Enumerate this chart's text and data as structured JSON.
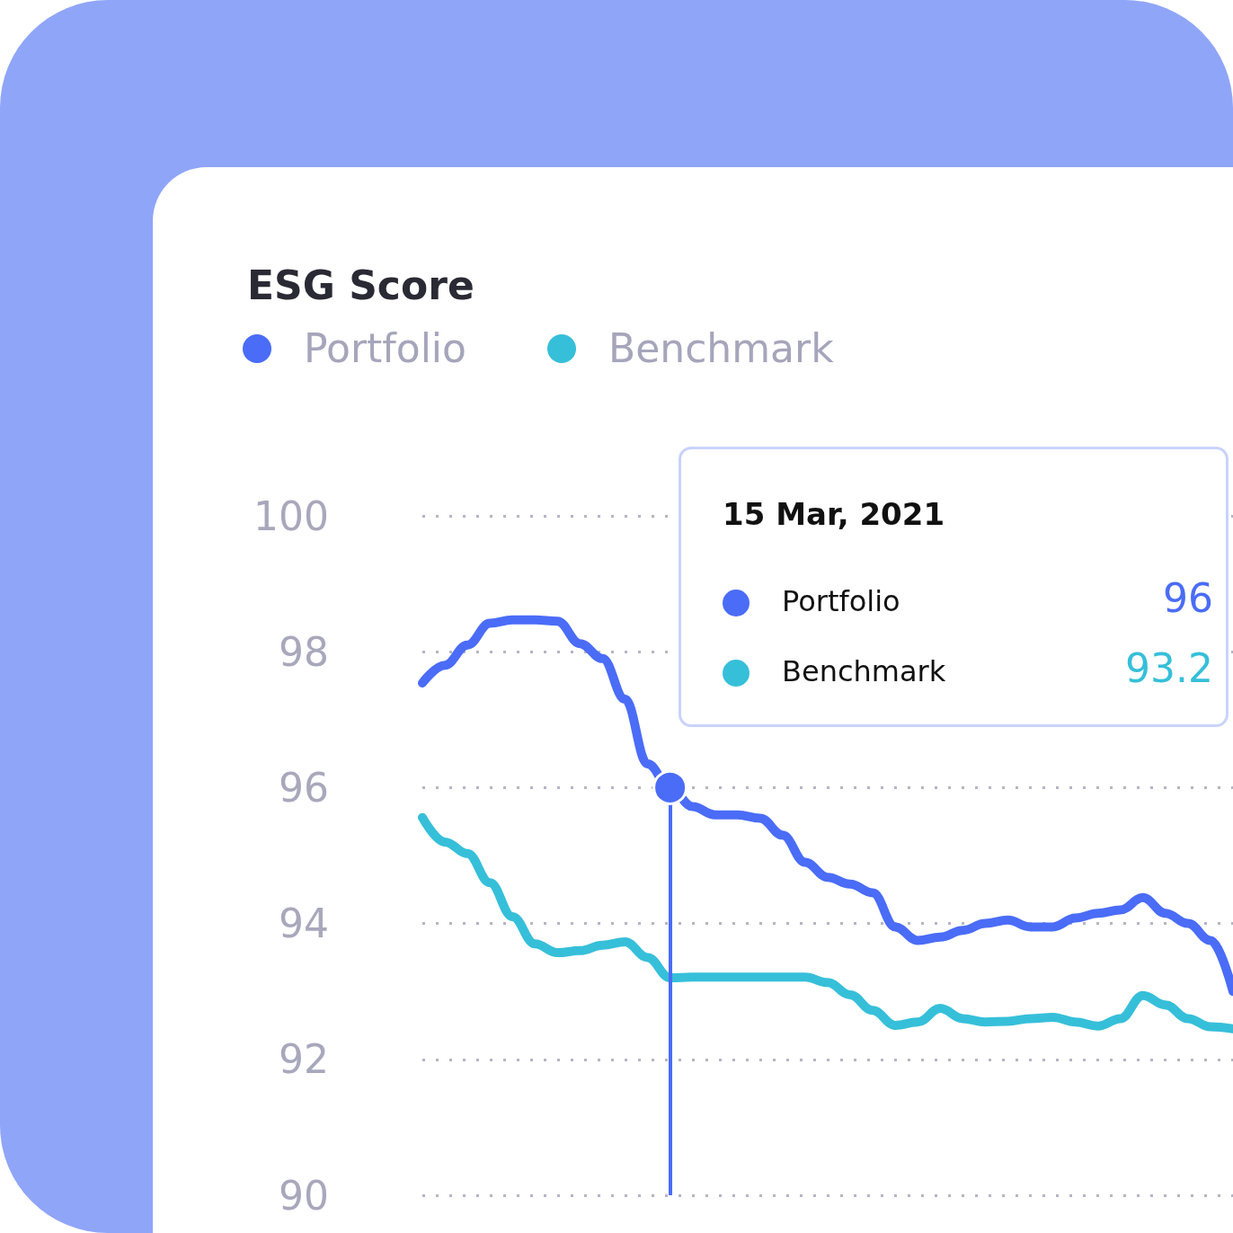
{
  "chart_data": {
    "type": "line",
    "title": "ESG Score",
    "categories": [
      null,
      null,
      null,
      null,
      null,
      null,
      null,
      null,
      null,
      null,
      null,
      null,
      null,
      null,
      null,
      null,
      null,
      null,
      null,
      null,
      null,
      null,
      null,
      null,
      null,
      null,
      null,
      null,
      null,
      null,
      null,
      null,
      null,
      null,
      null,
      null,
      null
    ],
    "series": [
      {
        "name": "Portfolio",
        "color": "#4a6cf7",
        "values": [
          97.54,
          97.8,
          98.1,
          98.42,
          98.47,
          98.47,
          98.45,
          98.12,
          97.9,
          97.3,
          96.35,
          96,
          95.72,
          95.6,
          95.6,
          95.55,
          95.3,
          94.9,
          94.68,
          94.58,
          94.45,
          93.95,
          93.75,
          93.8,
          93.9,
          94.0,
          94.05,
          93.95,
          93.95,
          94.08,
          94.15,
          94.2,
          94.38,
          94.15,
          94.0,
          93.75,
          93.0
        ]
      },
      {
        "name": "Benchmark",
        "color": "#36bfd9",
        "values": [
          95.56,
          95.2,
          95.03,
          94.6,
          94.1,
          93.7,
          93.57,
          93.6,
          93.68,
          93.73,
          93.5,
          93.2,
          93.21,
          93.21,
          93.21,
          93.21,
          93.21,
          93.21,
          93.13,
          92.95,
          92.72,
          92.5,
          92.55,
          92.75,
          92.6,
          92.55,
          92.56,
          92.6,
          92.62,
          92.55,
          92.49,
          92.6,
          92.94,
          92.8,
          92.6,
          92.48,
          92.45
        ]
      }
    ],
    "annotations": [
      "15 Mar, 2021",
      "96",
      "93.2"
    ],
    "ylim": [
      90,
      100
    ],
    "yticks": [
      90,
      92,
      94,
      96,
      98,
      100
    ],
    "grid": "y",
    "legend": "top left",
    "tick_labels": "y",
    "line_style": "solid"
  }
}
